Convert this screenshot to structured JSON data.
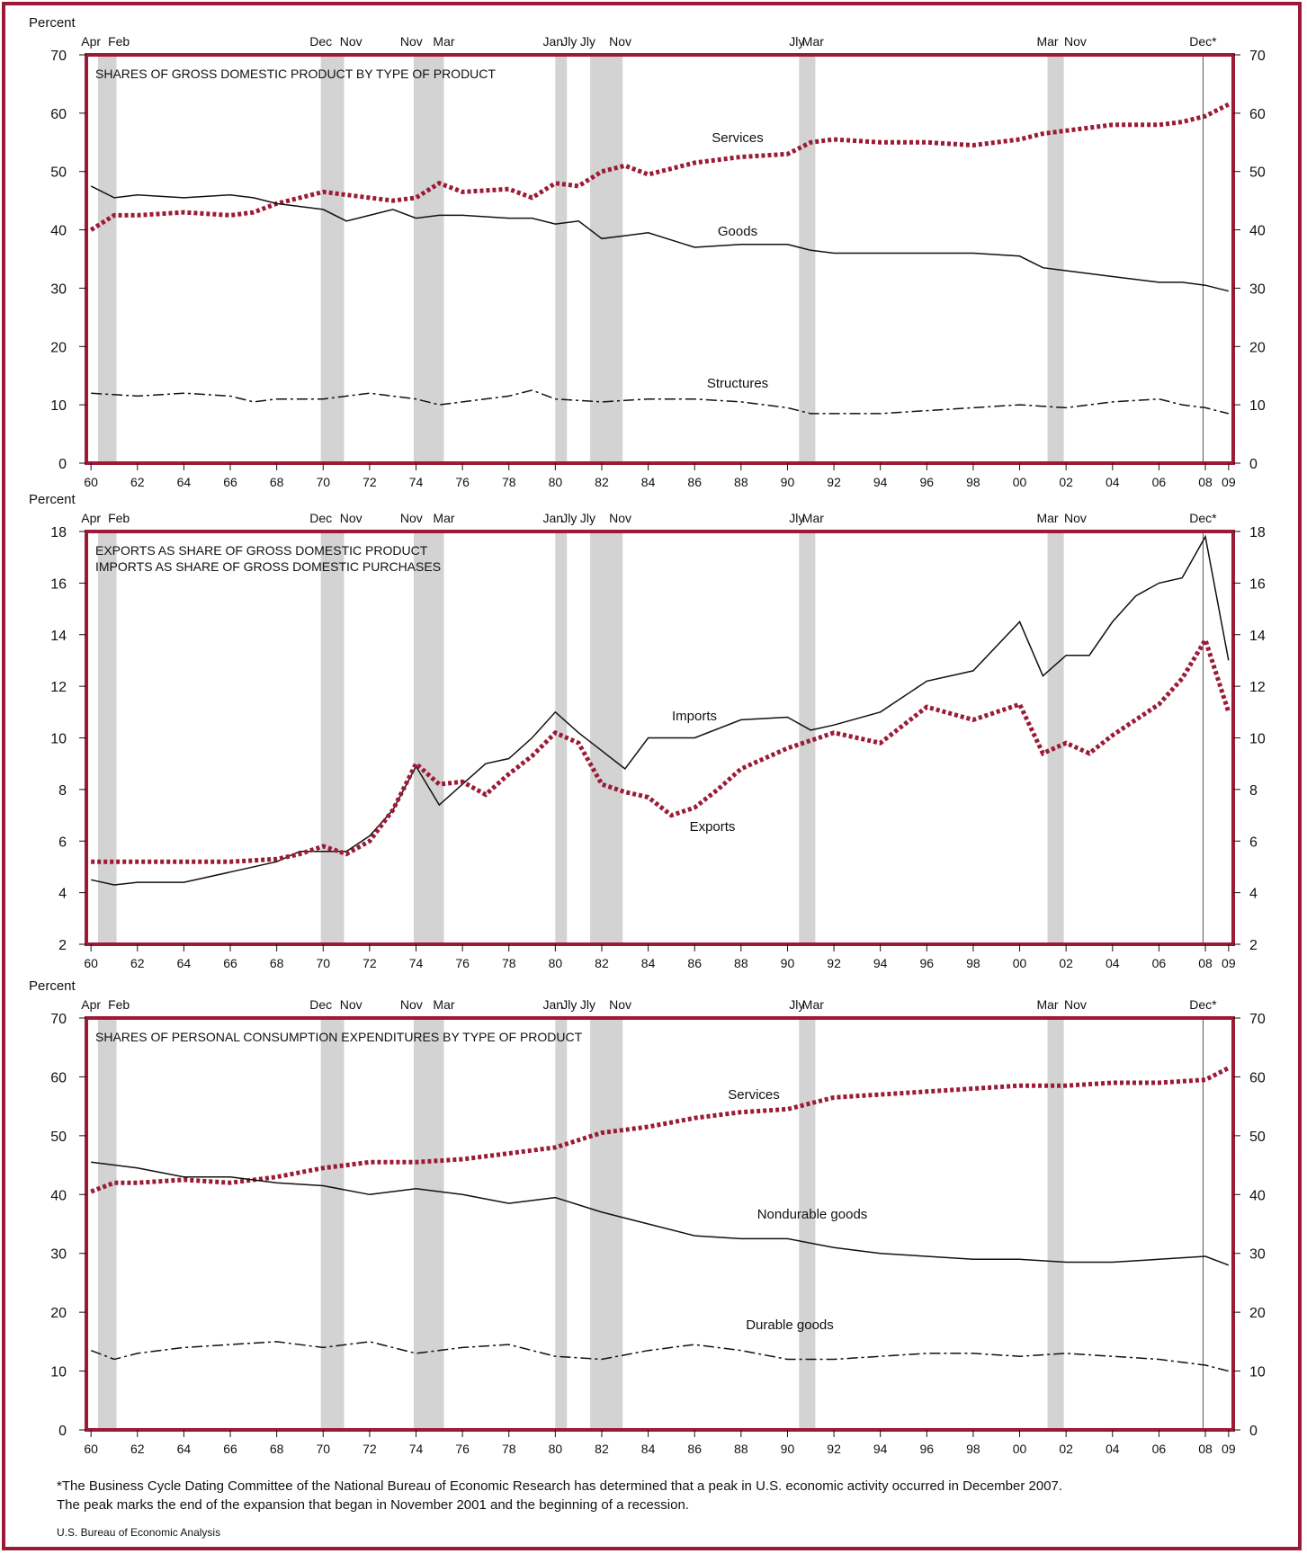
{
  "colors": {
    "frame": "#9b1b37",
    "accent_series": "#9b1b37",
    "recession_band": "#d3d3d3",
    "line": "#111111"
  },
  "recession_labels": [
    "Apr",
    "Feb",
    "Dec",
    "Nov",
    "Nov",
    "Mar",
    "Jan",
    "Jly",
    "Jly",
    "Nov",
    "Jly",
    "Mar",
    "Mar",
    "Nov",
    "Dec*"
  ],
  "chart_data": [
    {
      "type": "line",
      "title": "SHARES OF GROSS DOMESTIC PRODUCT BY TYPE OF PRODUCT",
      "ylabel": "Percent",
      "ylim": [
        0,
        70
      ],
      "yticks": [
        0,
        10,
        20,
        30,
        40,
        50,
        60,
        70
      ],
      "xlim": [
        1959.8,
        2009.2
      ],
      "xtick_labels": [
        "60",
        "62",
        "64",
        "66",
        "68",
        "70",
        "72",
        "74",
        "76",
        "78",
        "80",
        "82",
        "84",
        "86",
        "88",
        "90",
        "92",
        "94",
        "96",
        "98",
        "00",
        "02",
        "04",
        "06",
        "08",
        "09"
      ],
      "series": [
        {
          "name": "Services",
          "style": "dotted",
          "color": "#9b1b37",
          "x": [
            1960,
            1961,
            1962,
            1964,
            1966,
            1967,
            1968,
            1970,
            1972,
            1973,
            1974,
            1975,
            1976,
            1978,
            1979,
            1980,
            1981,
            1982,
            1983,
            1984,
            1986,
            1988,
            1990,
            1991,
            1992,
            1994,
            1996,
            1998,
            2000,
            2001,
            2002,
            2004,
            2006,
            2007,
            2008,
            2009
          ],
          "y": [
            40,
            42.5,
            42.5,
            43,
            42.5,
            43,
            44.5,
            46.5,
            45.5,
            45,
            45.5,
            48,
            46.5,
            47,
            45.5,
            48,
            47.5,
            50,
            51,
            49.5,
            51.5,
            52.5,
            53,
            55,
            55.5,
            55,
            55,
            54.5,
            55.5,
            56.5,
            57,
            58,
            58,
            58.5,
            59.5,
            61.5
          ]
        },
        {
          "name": "Goods",
          "style": "solid",
          "color": "#111111",
          "x": [
            1960,
            1961,
            1962,
            1964,
            1966,
            1967,
            1968,
            1970,
            1971,
            1972,
            1973,
            1974,
            1975,
            1976,
            1978,
            1979,
            1980,
            1981,
            1982,
            1983,
            1984,
            1986,
            1988,
            1990,
            1991,
            1992,
            1994,
            1996,
            1998,
            2000,
            2001,
            2002,
            2004,
            2006,
            2007,
            2008,
            2009
          ],
          "y": [
            47.5,
            45.5,
            46,
            45.5,
            46,
            45.5,
            44.5,
            43.5,
            41.5,
            42.5,
            43.5,
            42,
            42.5,
            42.5,
            42,
            42,
            41,
            41.5,
            38.5,
            39,
            39.5,
            37,
            37.5,
            37.5,
            36.5,
            36,
            36,
            36,
            36,
            35.5,
            33.5,
            33,
            32,
            31,
            31,
            30.5,
            29.5
          ]
        },
        {
          "name": "Structures",
          "style": "dashdot",
          "color": "#111111",
          "x": [
            1960,
            1962,
            1964,
            1966,
            1967,
            1968,
            1970,
            1972,
            1974,
            1975,
            1976,
            1978,
            1979,
            1980,
            1982,
            1984,
            1986,
            1988,
            1990,
            1991,
            1992,
            1994,
            1996,
            1998,
            2000,
            2002,
            2004,
            2006,
            2007,
            2008,
            2009
          ],
          "y": [
            12,
            11.5,
            12,
            11.5,
            10.5,
            11,
            11,
            12,
            11,
            10,
            10.5,
            11.5,
            12.5,
            11,
            10.5,
            11,
            11,
            10.5,
            9.5,
            8.5,
            8.5,
            8.5,
            9,
            9.5,
            10,
            9.5,
            10.5,
            11,
            10,
            9.5,
            8.5
          ]
        }
      ]
    },
    {
      "type": "line",
      "title": "EXPORTS AS SHARE OF GROSS DOMESTIC PRODUCT",
      "subtitle": "IMPORTS AS SHARE OF GROSS DOMESTIC PURCHASES",
      "ylabel": "Percent",
      "ylim": [
        2,
        18
      ],
      "yticks": [
        2,
        4,
        6,
        8,
        10,
        12,
        14,
        16,
        18
      ],
      "xlim": [
        1959.8,
        2009.2
      ],
      "xtick_labels": [
        "60",
        "62",
        "64",
        "66",
        "68",
        "70",
        "72",
        "74",
        "76",
        "78",
        "80",
        "82",
        "84",
        "86",
        "88",
        "90",
        "92",
        "94",
        "96",
        "98",
        "00",
        "02",
        "04",
        "06",
        "08",
        "09"
      ],
      "series": [
        {
          "name": "Imports",
          "style": "solid",
          "color": "#111111",
          "x": [
            1960,
            1961,
            1962,
            1964,
            1966,
            1968,
            1969,
            1970,
            1971,
            1972,
            1973,
            1974,
            1975,
            1976,
            1977,
            1978,
            1979,
            1980,
            1981,
            1982,
            1983,
            1984,
            1986,
            1988,
            1990,
            1991,
            1992,
            1994,
            1996,
            1998,
            2000,
            2001,
            2002,
            2003,
            2004,
            2005,
            2006,
            2007,
            2008,
            2009
          ],
          "y": [
            4.5,
            4.3,
            4.4,
            4.4,
            4.8,
            5.2,
            5.6,
            5.6,
            5.6,
            6.2,
            7.2,
            8.9,
            7.4,
            8.2,
            9,
            9.2,
            10,
            11,
            10.2,
            9.5,
            8.8,
            10,
            10,
            10.7,
            10.8,
            10.3,
            10.5,
            11,
            12.2,
            12.6,
            14.5,
            12.4,
            13.2,
            13.2,
            14.5,
            15.5,
            16,
            16.2,
            17.8,
            13
          ]
        },
        {
          "name": "Exports",
          "style": "dotted",
          "color": "#9b1b37",
          "x": [
            1960,
            1962,
            1964,
            1966,
            1968,
            1969,
            1970,
            1971,
            1972,
            1973,
            1974,
            1975,
            1976,
            1977,
            1978,
            1979,
            1980,
            1981,
            1982,
            1983,
            1984,
            1985,
            1986,
            1987,
            1988,
            1990,
            1992,
            1994,
            1996,
            1998,
            2000,
            2001,
            2002,
            2003,
            2004,
            2006,
            2007,
            2008,
            2009
          ],
          "y": [
            5.2,
            5.2,
            5.2,
            5.2,
            5.3,
            5.5,
            5.8,
            5.5,
            6,
            7.2,
            9,
            8.2,
            8.3,
            7.8,
            8.6,
            9.3,
            10.2,
            9.8,
            8.2,
            7.9,
            7.7,
            7,
            7.3,
            8,
            8.8,
            9.6,
            10.2,
            9.8,
            11.2,
            10.7,
            11.3,
            9.4,
            9.8,
            9.4,
            10.1,
            11.3,
            12.3,
            13.8,
            11
          ]
        }
      ],
      "annotations": [
        "Imports",
        "Exports"
      ]
    },
    {
      "type": "line",
      "title": "SHARES OF PERSONAL CONSUMPTION EXPENDITURES BY TYPE OF PRODUCT",
      "ylabel": "Percent",
      "ylim": [
        0,
        70
      ],
      "yticks": [
        0,
        10,
        20,
        30,
        40,
        50,
        60,
        70
      ],
      "xlim": [
        1959.8,
        2009.2
      ],
      "xtick_labels": [
        "60",
        "62",
        "64",
        "66",
        "68",
        "70",
        "72",
        "74",
        "76",
        "78",
        "80",
        "82",
        "84",
        "86",
        "88",
        "90",
        "92",
        "94",
        "96",
        "98",
        "00",
        "02",
        "04",
        "06",
        "08",
        "09"
      ],
      "series": [
        {
          "name": "Services",
          "style": "dotted",
          "color": "#9b1b37",
          "x": [
            1960,
            1961,
            1962,
            1964,
            1966,
            1968,
            1970,
            1972,
            1974,
            1976,
            1978,
            1980,
            1982,
            1984,
            1986,
            1988,
            1990,
            1992,
            1994,
            1996,
            1998,
            2000,
            2002,
            2004,
            2006,
            2008,
            2009
          ],
          "y": [
            40.5,
            42,
            42,
            42.5,
            42,
            43,
            44.5,
            45.5,
            45.5,
            46,
            47,
            48,
            50.5,
            51.5,
            53,
            54,
            54.5,
            56.5,
            57,
            57.5,
            58,
            58.5,
            58.5,
            59,
            59,
            59.5,
            61.5
          ]
        },
        {
          "name": "Nondurable goods",
          "style": "solid",
          "color": "#111111",
          "x": [
            1960,
            1962,
            1964,
            1966,
            1968,
            1970,
            1972,
            1974,
            1976,
            1978,
            1980,
            1982,
            1984,
            1986,
            1988,
            1990,
            1992,
            1994,
            1996,
            1998,
            2000,
            2002,
            2004,
            2006,
            2008,
            2009
          ],
          "y": [
            45.5,
            44.5,
            43,
            43,
            42,
            41.5,
            40,
            41,
            40,
            38.5,
            39.5,
            37,
            35,
            33,
            32.5,
            32.5,
            31,
            30,
            29.5,
            29,
            29,
            28.5,
            28.5,
            29,
            29.5,
            28
          ]
        },
        {
          "name": "Durable goods",
          "style": "dashdot",
          "color": "#111111",
          "x": [
            1960,
            1961,
            1962,
            1964,
            1966,
            1968,
            1970,
            1972,
            1974,
            1976,
            1978,
            1980,
            1982,
            1984,
            1986,
            1988,
            1990,
            1992,
            1994,
            1996,
            1998,
            2000,
            2002,
            2004,
            2006,
            2008,
            2009
          ],
          "y": [
            13.5,
            12,
            13,
            14,
            14.5,
            15,
            14,
            15,
            13,
            14,
            14.5,
            12.5,
            12,
            13.5,
            14.5,
            13.5,
            12,
            12,
            12.5,
            13,
            13,
            12.5,
            13,
            12.5,
            12,
            11,
            10
          ]
        }
      ]
    }
  ],
  "footnote": {
    "line1": "*The Business Cycle Dating Committee of the National Bureau of Economic Research has determined that a peak in U.S. economic activity occurred in December 2007.",
    "line2": "The peak marks the end of the expansion that began in November 2001 and the beginning of a recession."
  },
  "source": "U.S. Bureau of Economic Analysis"
}
